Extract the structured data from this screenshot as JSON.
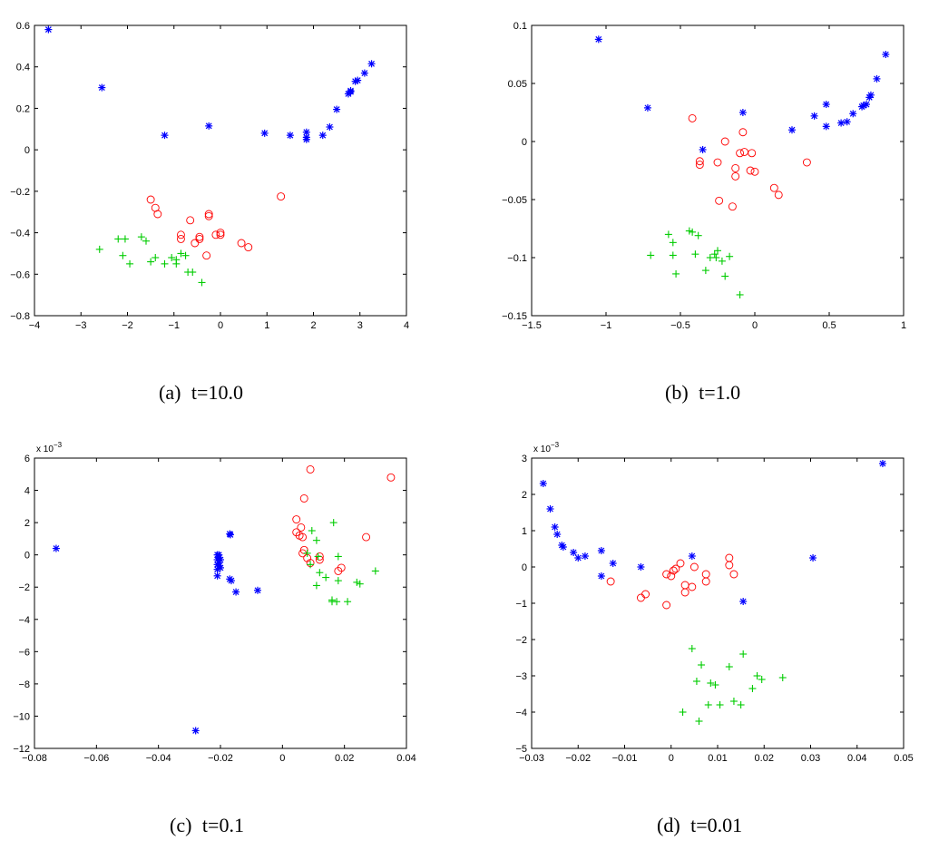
{
  "colors": {
    "series_star": "#0000ff",
    "series_circle": "#ff0000",
    "series_plus": "#00cc00"
  },
  "chart_data": [
    {
      "type": "scatter",
      "caption_label": "(a)",
      "caption_value": "t=10.0",
      "xlim": [
        -4,
        4
      ],
      "ylim": [
        -0.8,
        0.6
      ],
      "xticks": [
        -4,
        -3,
        -2,
        -1,
        0,
        1,
        2,
        3,
        4
      ],
      "yticks": [
        -0.8,
        -0.6,
        -0.4,
        -0.2,
        0,
        0.2,
        0.4,
        0.6
      ],
      "xticklabels": [
        "−4",
        "−3",
        "−2",
        "−1",
        "0",
        "1",
        "2",
        "3",
        "4"
      ],
      "yticklabels": [
        "−0.8",
        "−0.6",
        "−0.4",
        "−0.2",
        "0",
        "0.2",
        "0.4",
        "0.6"
      ],
      "exponent_label": "",
      "series": [
        {
          "marker": "star",
          "color": "#0000ff",
          "points": [
            [
              -3.7,
              0.58
            ],
            [
              -2.55,
              0.3
            ],
            [
              -1.2,
              0.07
            ],
            [
              -0.25,
              0.115
            ],
            [
              0.95,
              0.08
            ],
            [
              1.5,
              0.07
            ],
            [
              1.85,
              0.085
            ],
            [
              1.85,
              0.06
            ],
            [
              1.85,
              0.05
            ],
            [
              2.2,
              0.07
            ],
            [
              2.35,
              0.11
            ],
            [
              2.5,
              0.195
            ],
            [
              2.75,
              0.27
            ],
            [
              2.8,
              0.28
            ],
            [
              2.8,
              0.285
            ],
            [
              2.9,
              0.33
            ],
            [
              2.95,
              0.335
            ],
            [
              3.1,
              0.37
            ],
            [
              3.25,
              0.415
            ]
          ]
        },
        {
          "marker": "circle",
          "color": "#ff0000",
          "points": [
            [
              -1.5,
              -0.24
            ],
            [
              -1.4,
              -0.28
            ],
            [
              -1.35,
              -0.31
            ],
            [
              -0.65,
              -0.34
            ],
            [
              -0.25,
              -0.31
            ],
            [
              -0.25,
              -0.32
            ],
            [
              -0.85,
              -0.41
            ],
            [
              -0.85,
              -0.43
            ],
            [
              -0.45,
              -0.42
            ],
            [
              -0.45,
              -0.43
            ],
            [
              -0.55,
              -0.45
            ],
            [
              -0.1,
              -0.41
            ],
            [
              0.0,
              -0.4
            ],
            [
              0.0,
              -0.41
            ],
            [
              0.45,
              -0.45
            ],
            [
              0.6,
              -0.47
            ],
            [
              -0.3,
              -0.51
            ],
            [
              1.3,
              -0.225
            ]
          ]
        },
        {
          "marker": "plus",
          "color": "#00cc00",
          "points": [
            [
              -2.6,
              -0.48
            ],
            [
              -2.2,
              -0.43
            ],
            [
              -2.05,
              -0.43
            ],
            [
              -2.1,
              -0.51
            ],
            [
              -1.95,
              -0.55
            ],
            [
              -1.7,
              -0.42
            ],
            [
              -1.6,
              -0.44
            ],
            [
              -1.5,
              -0.54
            ],
            [
              -1.4,
              -0.52
            ],
            [
              -1.2,
              -0.55
            ],
            [
              -1.05,
              -0.52
            ],
            [
              -0.95,
              -0.53
            ],
            [
              -0.95,
              -0.55
            ],
            [
              -0.85,
              -0.5
            ],
            [
              -0.75,
              -0.51
            ],
            [
              -0.7,
              -0.59
            ],
            [
              -0.6,
              -0.59
            ],
            [
              -0.4,
              -0.64
            ]
          ]
        }
      ]
    },
    {
      "type": "scatter",
      "caption_label": "(b)",
      "caption_value": "t=1.0",
      "xlim": [
        -1.5,
        1
      ],
      "ylim": [
        -0.15,
        0.1
      ],
      "xticks": [
        -1.5,
        -1,
        -0.5,
        0,
        0.5,
        1
      ],
      "yticks": [
        -0.15,
        -0.1,
        -0.05,
        0,
        0.05,
        0.1
      ],
      "xticklabels": [
        "−1.5",
        "−1",
        "−0.5",
        "0",
        "0.5",
        "1"
      ],
      "yticklabels": [
        "−0.15",
        "−0.1",
        "−0.05",
        "0",
        "0.05",
        "0.1"
      ],
      "exponent_label": "",
      "series": [
        {
          "marker": "star",
          "color": "#0000ff",
          "points": [
            [
              -1.05,
              0.088
            ],
            [
              -0.72,
              0.029
            ],
            [
              -0.35,
              -0.007
            ],
            [
              -0.08,
              0.025
            ],
            [
              0.25,
              0.01
            ],
            [
              0.4,
              0.022
            ],
            [
              0.48,
              0.032
            ],
            [
              0.48,
              0.013
            ],
            [
              0.58,
              0.016
            ],
            [
              0.62,
              0.017
            ],
            [
              0.66,
              0.024
            ],
            [
              0.72,
              0.03
            ],
            [
              0.73,
              0.031
            ],
            [
              0.75,
              0.032
            ],
            [
              0.77,
              0.038
            ],
            [
              0.78,
              0.04
            ],
            [
              0.82,
              0.054
            ],
            [
              0.88,
              0.075
            ]
          ]
        },
        {
          "marker": "circle",
          "color": "#ff0000",
          "points": [
            [
              -0.42,
              0.02
            ],
            [
              -0.37,
              -0.017
            ],
            [
              -0.37,
              -0.02
            ],
            [
              -0.2,
              0.0
            ],
            [
              -0.25,
              -0.018
            ],
            [
              -0.13,
              -0.023
            ],
            [
              -0.13,
              -0.03
            ],
            [
              -0.08,
              0.008
            ],
            [
              -0.1,
              -0.01
            ],
            [
              -0.07,
              -0.009
            ],
            [
              -0.02,
              -0.01
            ],
            [
              -0.03,
              -0.025
            ],
            [
              0.0,
              -0.026
            ],
            [
              -0.24,
              -0.051
            ],
            [
              -0.15,
              -0.056
            ],
            [
              0.13,
              -0.04
            ],
            [
              0.16,
              -0.046
            ],
            [
              0.35,
              -0.018
            ]
          ]
        },
        {
          "marker": "plus",
          "color": "#00cc00",
          "points": [
            [
              -0.7,
              -0.098
            ],
            [
              -0.58,
              -0.08
            ],
            [
              -0.55,
              -0.087
            ],
            [
              -0.55,
              -0.098
            ],
            [
              -0.53,
              -0.114
            ],
            [
              -0.44,
              -0.077
            ],
            [
              -0.42,
              -0.078
            ],
            [
              -0.38,
              -0.081
            ],
            [
              -0.4,
              -0.097
            ],
            [
              -0.33,
              -0.111
            ],
            [
              -0.3,
              -0.1
            ],
            [
              -0.27,
              -0.097
            ],
            [
              -0.26,
              -0.1
            ],
            [
              -0.25,
              -0.094
            ],
            [
              -0.22,
              -0.103
            ],
            [
              -0.2,
              -0.116
            ],
            [
              -0.17,
              -0.099
            ],
            [
              -0.1,
              -0.132
            ]
          ]
        }
      ]
    },
    {
      "type": "scatter",
      "caption_label": "(c)",
      "caption_value": "t=0.1",
      "xlim": [
        -0.08,
        0.04
      ],
      "ylim": [
        -12,
        6
      ],
      "xticks": [
        -0.08,
        -0.06,
        -0.04,
        -0.02,
        0,
        0.02,
        0.04
      ],
      "yticks": [
        -12,
        -10,
        -8,
        -6,
        -4,
        -2,
        0,
        2,
        4,
        6
      ],
      "xticklabels": [
        "−0.08",
        "−0.06",
        "−0.04",
        "−0.02",
        "0",
        "0.02",
        "0.04"
      ],
      "yticklabels": [
        "−12",
        "−10",
        "−8",
        "−6",
        "−4",
        "−2",
        "0",
        "2",
        "4",
        "6"
      ],
      "exponent_label": "x 10",
      "exponent_power": "−3",
      "series": [
        {
          "marker": "star",
          "color": "#0000ff",
          "points": [
            [
              -0.073,
              0.4
            ],
            [
              -0.028,
              -10.9
            ],
            [
              -0.021,
              -0.0
            ],
            [
              -0.021,
              -0.3
            ],
            [
              -0.021,
              -0.6
            ],
            [
              -0.021,
              -0.9
            ],
            [
              -0.0205,
              0.0
            ],
            [
              -0.0205,
              -0.2
            ],
            [
              -0.0205,
              -0.5
            ],
            [
              -0.0205,
              -0.7
            ],
            [
              -0.021,
              -1.3
            ],
            [
              -0.02,
              -0.8
            ],
            [
              -0.02,
              -0.3
            ],
            [
              -0.017,
              1.3
            ],
            [
              -0.0168,
              1.25
            ],
            [
              -0.017,
              -1.5
            ],
            [
              -0.0165,
              -1.6
            ],
            [
              -0.015,
              -2.3
            ],
            [
              -0.008,
              -2.2
            ]
          ]
        },
        {
          "marker": "circle",
          "color": "#ff0000",
          "points": [
            [
              0.009,
              5.3
            ],
            [
              0.035,
              4.8
            ],
            [
              0.007,
              3.5
            ],
            [
              0.0045,
              2.2
            ],
            [
              0.006,
              1.7
            ],
            [
              0.0045,
              1.4
            ],
            [
              0.0055,
              1.2
            ],
            [
              0.0065,
              1.1
            ],
            [
              0.007,
              0.3
            ],
            [
              0.0065,
              0.1
            ],
            [
              0.008,
              -0.2
            ],
            [
              0.009,
              -0.5
            ],
            [
              0.012,
              -0.1
            ],
            [
              0.012,
              -0.3
            ],
            [
              0.018,
              -1.0
            ],
            [
              0.019,
              -0.8
            ],
            [
              0.027,
              1.1
            ]
          ]
        },
        {
          "marker": "plus",
          "color": "#00cc00",
          "points": [
            [
              0.0165,
              2.0
            ],
            [
              0.0095,
              1.5
            ],
            [
              0.011,
              0.9
            ],
            [
              0.008,
              0.1
            ],
            [
              0.009,
              -0.6
            ],
            [
              0.0115,
              -0.1
            ],
            [
              0.012,
              -1.1
            ],
            [
              0.011,
              -1.9
            ],
            [
              0.014,
              -1.4
            ],
            [
              0.018,
              -1.6
            ],
            [
              0.018,
              -0.1
            ],
            [
              0.016,
              -2.8
            ],
            [
              0.0175,
              -2.9
            ],
            [
              0.021,
              -2.9
            ],
            [
              0.024,
              -1.7
            ],
            [
              0.025,
              -1.8
            ],
            [
              0.03,
              -1.0
            ],
            [
              0.016,
              -2.9
            ]
          ]
        }
      ]
    },
    {
      "type": "scatter",
      "caption_label": "(d)",
      "caption_value": "t=0.01",
      "xlim": [
        -0.03,
        0.05
      ],
      "ylim": [
        -5,
        3
      ],
      "xticks": [
        -0.03,
        -0.02,
        -0.01,
        0,
        0.01,
        0.02,
        0.03,
        0.04,
        0.05
      ],
      "yticks": [
        -5,
        -4,
        -3,
        -2,
        -1,
        0,
        1,
        2,
        3
      ],
      "xticklabels": [
        "−0.03",
        "−0.02",
        "−0.01",
        "0",
        "0.01",
        "0.02",
        "0.03",
        "0.04",
        "0.05"
      ],
      "yticklabels": [
        "−5",
        "−4",
        "−3",
        "−2",
        "−1",
        "0",
        "1",
        "2",
        "3"
      ],
      "exponent_label": "x 10",
      "exponent_power": "−3",
      "series": [
        {
          "marker": "star",
          "color": "#0000ff",
          "points": [
            [
              -0.0275,
              2.3
            ],
            [
              -0.026,
              1.6
            ],
            [
              -0.025,
              1.1
            ],
            [
              -0.0245,
              0.9
            ],
            [
              -0.0235,
              0.6
            ],
            [
              -0.0232,
              0.55
            ],
            [
              -0.021,
              0.4
            ],
            [
              -0.02,
              0.25
            ],
            [
              -0.0185,
              0.3
            ],
            [
              -0.015,
              0.45
            ],
            [
              -0.015,
              -0.25
            ],
            [
              -0.0125,
              0.1
            ],
            [
              -0.0065,
              -0.0
            ],
            [
              0.0045,
              0.3
            ],
            [
              0.0155,
              -0.95
            ],
            [
              0.0305,
              0.25
            ],
            [
              0.0455,
              2.85
            ]
          ]
        },
        {
          "marker": "circle",
          "color": "#ff0000",
          "points": [
            [
              -0.0065,
              -0.85
            ],
            [
              -0.0055,
              -0.75
            ],
            [
              -0.001,
              -1.05
            ],
            [
              -0.001,
              -0.2
            ],
            [
              0.0,
              -0.25
            ],
            [
              0.0005,
              -0.1
            ],
            [
              0.001,
              -0.05
            ],
            [
              0.002,
              0.1
            ],
            [
              0.003,
              -0.5
            ],
            [
              0.003,
              -0.7
            ],
            [
              0.0045,
              -0.55
            ],
            [
              0.005,
              0.0
            ],
            [
              0.0075,
              -0.2
            ],
            [
              0.0075,
              -0.4
            ],
            [
              0.0125,
              0.25
            ],
            [
              0.0125,
              0.05
            ],
            [
              0.0135,
              -0.2
            ],
            [
              -0.013,
              -0.4
            ]
          ]
        },
        {
          "marker": "plus",
          "color": "#00cc00",
          "points": [
            [
              0.0045,
              -2.25
            ],
            [
              0.0055,
              -3.15
            ],
            [
              0.0065,
              -2.7
            ],
            [
              0.0085,
              -3.2
            ],
            [
              0.0095,
              -3.25
            ],
            [
              0.008,
              -3.8
            ],
            [
              0.0105,
              -3.8
            ],
            [
              0.0125,
              -2.75
            ],
            [
              0.0135,
              -3.7
            ],
            [
              0.015,
              -3.8
            ],
            [
              0.0155,
              -2.4
            ],
            [
              0.0175,
              -3.35
            ],
            [
              0.0185,
              -3.0
            ],
            [
              0.0195,
              -3.1
            ],
            [
              0.024,
              -3.05
            ],
            [
              0.006,
              -4.25
            ],
            [
              0.0025,
              -4.0
            ]
          ]
        }
      ]
    }
  ]
}
